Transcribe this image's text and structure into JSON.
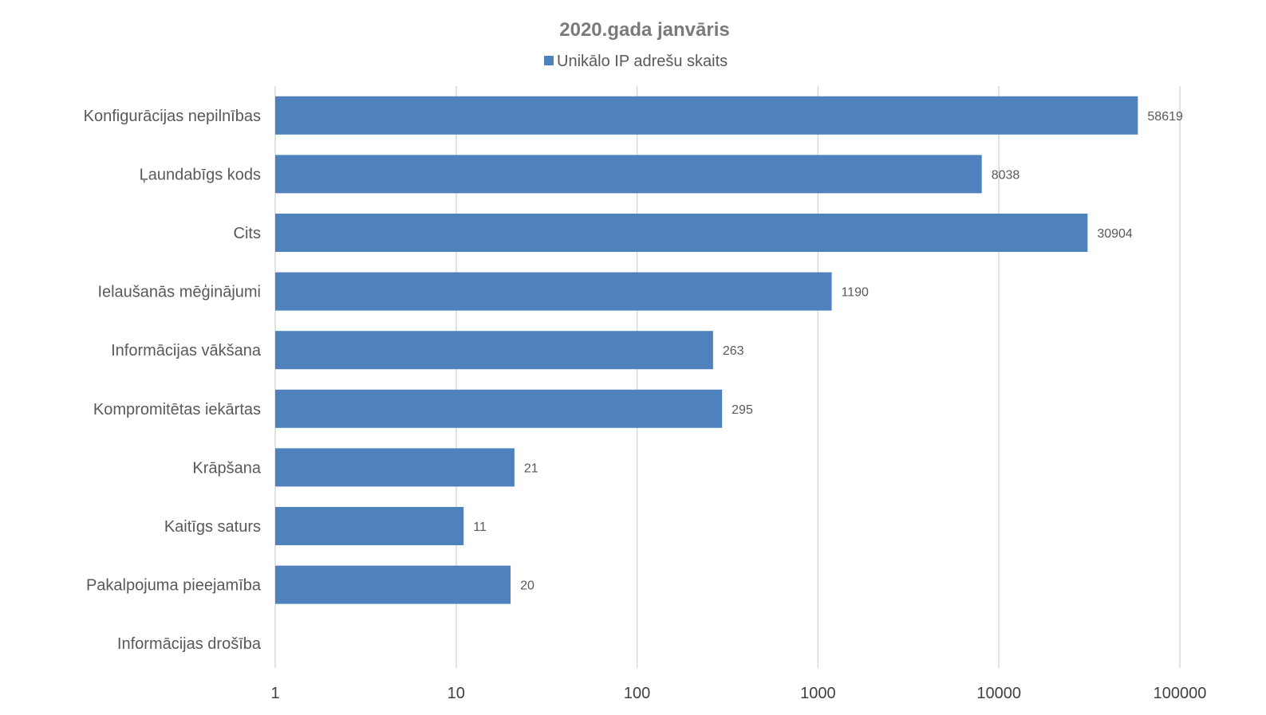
{
  "chart_data": {
    "type": "bar",
    "orientation": "horizontal",
    "title": "2020.gada janvāris",
    "xscale": "log",
    "xlim": [
      1,
      100000
    ],
    "xticks": [
      "1",
      "10",
      "100",
      "1000",
      "10000",
      "100000"
    ],
    "xtick_values": [
      1,
      10,
      100,
      1000,
      10000,
      100000
    ],
    "grid": true,
    "legend_position": "top",
    "categories": [
      "Konfigurācijas nepilnības",
      "Ļaundabīgs kods",
      "Cits",
      "Ielaušanās mēģinājumi",
      "Informācijas vākšana",
      "Kompromitētas iekārtas",
      "Krāpšana",
      "Kaitīgs saturs",
      "Pakalpojuma pieejamība",
      "Informācijas drošība"
    ],
    "series": [
      {
        "name": "Unikālo IP adrešu skaits",
        "color": "#4f81bd",
        "values": [
          58619,
          8038,
          30904,
          1190,
          263,
          295,
          21,
          11,
          20,
          null
        ],
        "labels": [
          "58619",
          "8038",
          "30904",
          "1190",
          "263",
          "295",
          "21",
          "11",
          "20",
          ""
        ]
      }
    ]
  }
}
